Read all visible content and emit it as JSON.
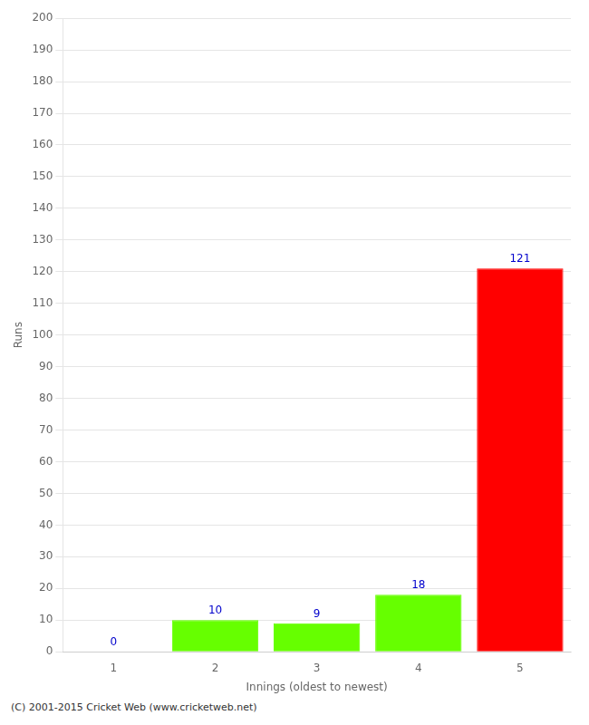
{
  "chart_data": {
    "type": "bar",
    "categories": [
      1,
      2,
      3,
      4,
      5
    ],
    "values": [
      0,
      10,
      9,
      18,
      121
    ],
    "colors": [
      "#66ff00",
      "#66ff00",
      "#66ff00",
      "#66ff00",
      "#ff0000"
    ],
    "xlabel": "Innings (oldest to newest)",
    "ylabel": "Runs",
    "ylim": [
      0,
      200
    ],
    "yticks": [
      0,
      10,
      20,
      30,
      40,
      50,
      60,
      70,
      80,
      90,
      100,
      110,
      120,
      130,
      140,
      150,
      160,
      170,
      180,
      190,
      200
    ],
    "grid": true,
    "data_labels": true,
    "footer": "(C) 2001-2015 Cricket Web (www.cricketweb.net)"
  }
}
